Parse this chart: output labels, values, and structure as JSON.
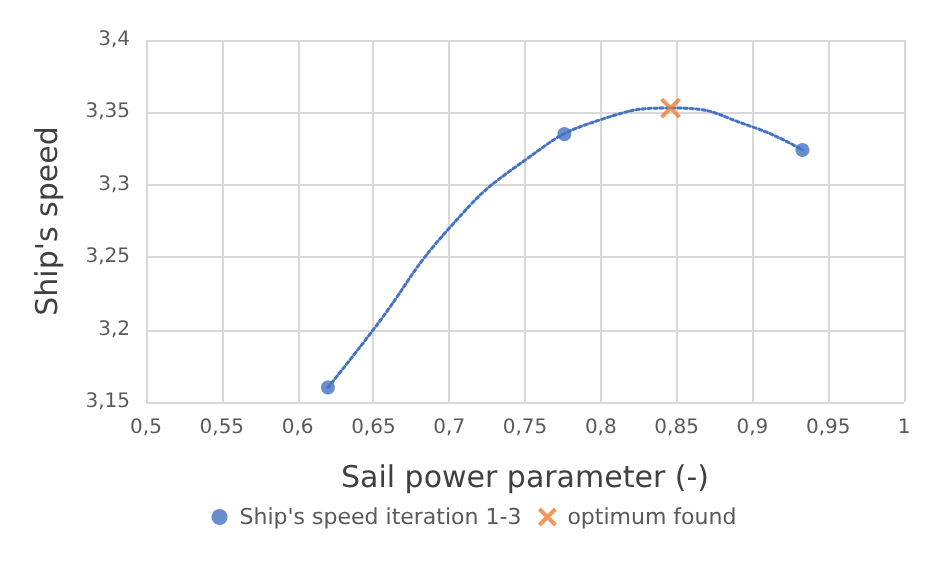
{
  "chart_data": {
    "type": "scatter",
    "xlabel": "Sail power parameter (-)",
    "ylabel": "Ship's speed",
    "xlim": [
      0.5,
      1
    ],
    "xticks": [
      {
        "value": 0.5,
        "label": "0,5"
      },
      {
        "value": 0.55,
        "label": "0,55"
      },
      {
        "value": 0.6,
        "label": "0,6"
      },
      {
        "value": 0.65,
        "label": "0,65"
      },
      {
        "value": 0.7,
        "label": "0,7"
      },
      {
        "value": 0.75,
        "label": "0,75"
      },
      {
        "value": 0.8,
        "label": "0,8"
      },
      {
        "value": 0.85,
        "label": "0,85"
      },
      {
        "value": 0.9,
        "label": "0,9"
      },
      {
        "value": 0.95,
        "label": "0,95"
      },
      {
        "value": 1,
        "label": "1"
      }
    ],
    "ylim": [
      3.15,
      3.4
    ],
    "yticks": [
      {
        "value": 3.15,
        "label": "3,15"
      },
      {
        "value": 3.2,
        "label": "3,2"
      },
      {
        "value": 3.25,
        "label": "3,25"
      },
      {
        "value": 3.3,
        "label": "3,3"
      },
      {
        "value": 3.35,
        "label": "3,35"
      },
      {
        "value": 3.4,
        "label": "3,4"
      }
    ],
    "grid": true,
    "legend": "bottom",
    "series": [
      {
        "type": "line",
        "color": "#4472c4",
        "line_style": "dotted",
        "marker": "none",
        "x": [
          0.62,
          0.65,
          0.7,
          0.75,
          0.8,
          0.85,
          0.9,
          0.933
        ],
        "values": [
          3.16,
          3.2,
          3.27,
          3.317,
          3.345,
          3.353,
          3.34,
          3.324
        ]
      },
      {
        "name": "Ship's speed iteration 1-3",
        "color": "#4472c4",
        "marker": "circle",
        "x": [
          0.62,
          0.776,
          0.933
        ],
        "values": [
          3.16,
          3.335,
          3.324
        ]
      },
      {
        "name": "optimum found",
        "color": "#ed7d31",
        "marker": "cross",
        "x": [
          0.846
        ],
        "values": [
          3.353
        ]
      }
    ]
  }
}
